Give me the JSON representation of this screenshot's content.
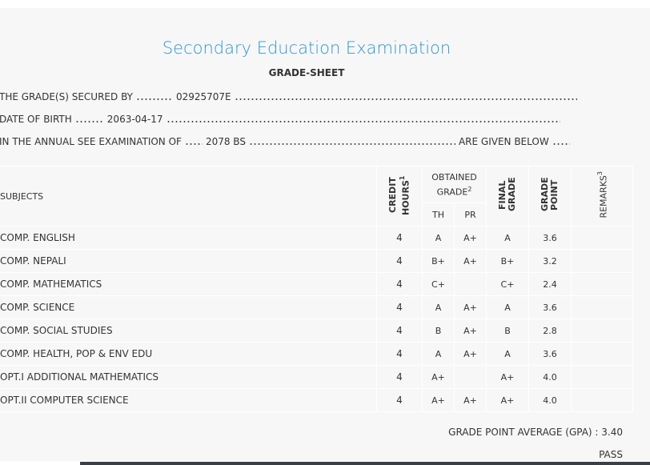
{
  "header": {
    "title": "Secondary Education Examination",
    "subtitle": "GRADE-SHEET"
  },
  "details": [
    {
      "label": "THE GRADE(S) SECURED BY",
      "value": "02925707E"
    },
    {
      "label": "DATE OF BIRTH",
      "value": "2063-04-17"
    },
    {
      "label": "IN THE ANNUAL SEE EXAMINATION OF",
      "value": "2078 BS",
      "suffix": "ARE GIVEN BELOW"
    }
  ],
  "table": {
    "columns": {
      "subjects": "SUBJECTS",
      "credit_hours": {
        "text": "CREDIT HOURS",
        "note": "1"
      },
      "obtained_grade": {
        "text": "OBTAINED GRADE",
        "note": "2"
      },
      "th": "TH",
      "pr": "PR",
      "final_grade": "FINAL GRADE",
      "grade_point": "GRADE POINT",
      "remarks": {
        "text": "REMARKS",
        "note": "3"
      }
    },
    "rows": [
      [
        "COMP. ENGLISH",
        "4",
        "A",
        "A+",
        "A",
        "3.6"
      ],
      [
        "COMP. NEPALI",
        "4",
        "B+",
        "A+",
        "B+",
        "3.2"
      ],
      [
        "COMP. MATHEMATICS",
        "4",
        "C+",
        null,
        "C+",
        "2.4"
      ],
      [
        "COMP. SCIENCE",
        "4",
        "A",
        "A+",
        "A",
        "3.6"
      ],
      [
        "COMP. SOCIAL STUDIES",
        "4",
        "B",
        "A+",
        "B",
        "2.8"
      ],
      [
        "COMP. HEALTH, POP & ENV EDU",
        "4",
        "A",
        "A+",
        "A",
        "3.6"
      ],
      [
        "OPT.I ADDITIONAL MATHEMATICS",
        "4",
        "A+",
        null,
        "A+",
        "4.0"
      ],
      [
        "OPT.II COMPUTER SCIENCE",
        "4",
        "A+",
        "A+",
        "A+",
        "4.0"
      ]
    ]
  },
  "summary": {
    "gpa_label": "GRADE POINT AVERAGE (GPA) :",
    "gpa": "3.40",
    "result": "PASS"
  }
}
